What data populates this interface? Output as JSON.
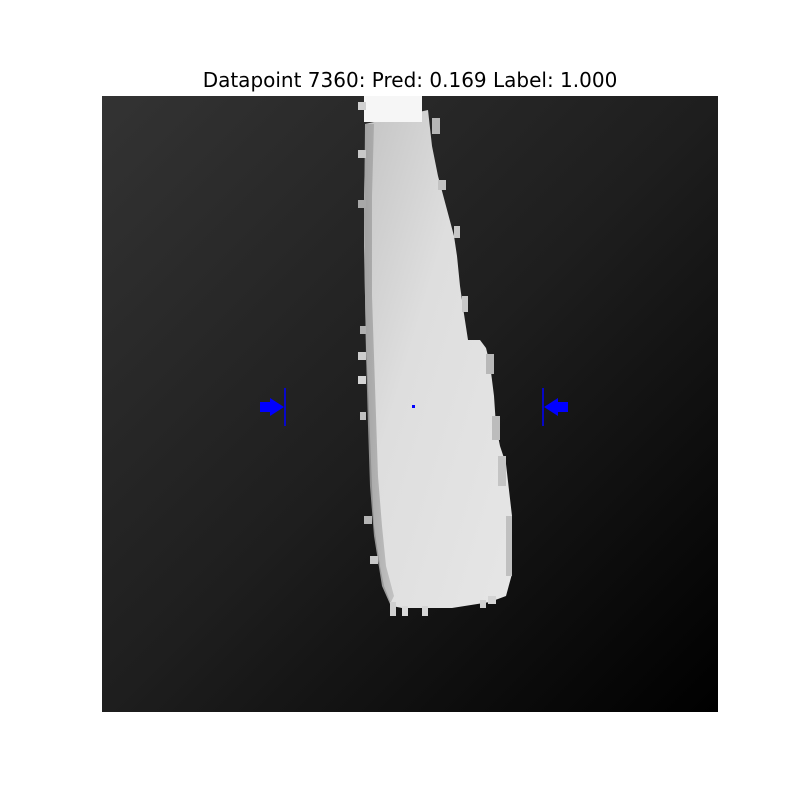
{
  "figure": {
    "title": "Datapoint 7360: Pred: 0.169 Label: 1.000"
  },
  "colors": {
    "marker": "#0000ff",
    "object": "#dcdcdc",
    "background_dark": "#121212",
    "background_light": "#303030",
    "figure_background": "#ffffff"
  }
}
